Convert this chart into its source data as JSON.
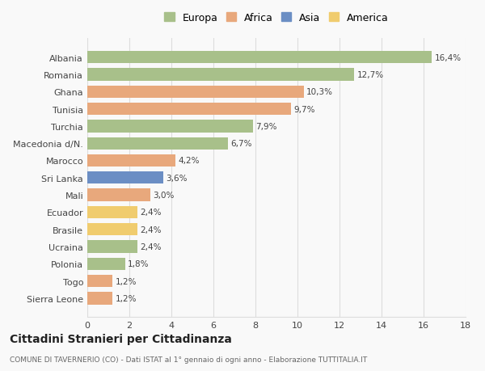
{
  "categories": [
    "Albania",
    "Romania",
    "Ghana",
    "Tunisia",
    "Turchia",
    "Macedonia d/N.",
    "Marocco",
    "Sri Lanka",
    "Mali",
    "Ecuador",
    "Brasile",
    "Ucraina",
    "Polonia",
    "Togo",
    "Sierra Leone"
  ],
  "values": [
    16.4,
    12.7,
    10.3,
    9.7,
    7.9,
    6.7,
    4.2,
    3.6,
    3.0,
    2.4,
    2.4,
    2.4,
    1.8,
    1.2,
    1.2
  ],
  "labels": [
    "16,4%",
    "12,7%",
    "10,3%",
    "9,7%",
    "7,9%",
    "6,7%",
    "4,2%",
    "3,6%",
    "3,0%",
    "2,4%",
    "2,4%",
    "2,4%",
    "1,8%",
    "1,2%",
    "1,2%"
  ],
  "continent": [
    "Europa",
    "Europa",
    "Africa",
    "Africa",
    "Europa",
    "Europa",
    "Africa",
    "Asia",
    "Africa",
    "America",
    "America",
    "Europa",
    "Europa",
    "Africa",
    "Africa"
  ],
  "colors": {
    "Europa": "#a8c08a",
    "Africa": "#e8a87c",
    "Asia": "#6b8ec4",
    "America": "#f0cc6e"
  },
  "legend_order": [
    "Europa",
    "Africa",
    "Asia",
    "America"
  ],
  "legend_colors": {
    "Europa": "#a8c08a",
    "Africa": "#e8a87c",
    "Asia": "#6b8ec4",
    "America": "#f0cc6e"
  },
  "xlim": [
    0,
    18
  ],
  "xticks": [
    0,
    2,
    4,
    6,
    8,
    10,
    12,
    14,
    16,
    18
  ],
  "title": "Cittadini Stranieri per Cittadinanza",
  "subtitle": "COMUNE DI TAVERNERIO (CO) - Dati ISTAT al 1° gennaio di ogni anno - Elaborazione TUTTITALIA.IT",
  "bg_color": "#f9f9f9",
  "grid_color": "#dddddd"
}
